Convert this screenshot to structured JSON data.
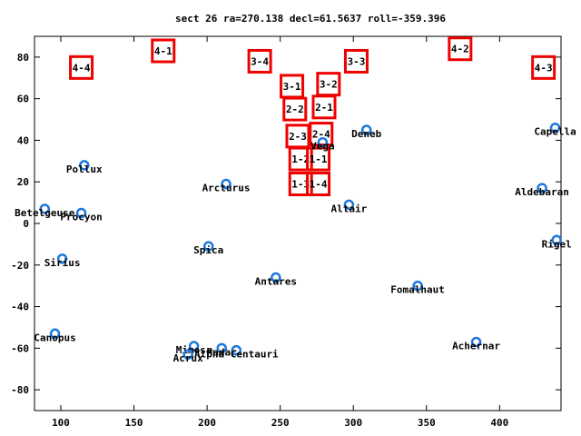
{
  "chart_data": {
    "type": "scatter",
    "title": "sect 26 ra=270.138 decl=61.5637 roll=-359.396",
    "xlabel": "",
    "ylabel": "",
    "xlim": [
      82,
      442
    ],
    "ylim": [
      -90,
      90
    ],
    "xticks": [
      100,
      150,
      200,
      250,
      300,
      350,
      400
    ],
    "yticks": [
      -80,
      -60,
      -40,
      -20,
      0,
      20,
      40,
      60,
      80
    ],
    "grid": false,
    "legend": "none",
    "colors": {
      "stars": "#1e78dc",
      "sectors": "#ee0000",
      "axis": "#000000",
      "text": "#000000"
    },
    "stars": [
      {
        "name": "Capella",
        "x": 438,
        "y": 46
      },
      {
        "name": "Deneb",
        "x": 309,
        "y": 45
      },
      {
        "name": "Vega",
        "x": 279,
        "y": 39
      },
      {
        "name": "Pollux",
        "x": 116,
        "y": 28
      },
      {
        "name": "Arcturus",
        "x": 213,
        "y": 19
      },
      {
        "name": "Aldebaran",
        "x": 429,
        "y": 17
      },
      {
        "name": "Altair",
        "x": 297,
        "y": 9
      },
      {
        "name": "Betelgeuse",
        "x": 89,
        "y": 7
      },
      {
        "name": "Procyon",
        "x": 114,
        "y": 5
      },
      {
        "name": "Rigel",
        "x": 439,
        "y": -8
      },
      {
        "name": "Spica",
        "x": 201,
        "y": -11
      },
      {
        "name": "Sirius",
        "x": 101,
        "y": -17
      },
      {
        "name": "Antares",
        "x": 247,
        "y": -26
      },
      {
        "name": "Fomalhaut",
        "x": 344,
        "y": -30
      },
      {
        "name": "Canopus",
        "x": 96,
        "y": -53
      },
      {
        "name": "Achernar",
        "x": 384,
        "y": -57
      },
      {
        "name": "Mimosa",
        "x": 191,
        "y": -59
      },
      {
        "name": "Hadar",
        "x": 210,
        "y": -60
      },
      {
        "name": "Alpha Centauri",
        "x": 220,
        "y": -61
      },
      {
        "name": "Acrux",
        "x": 187,
        "y": -63
      }
    ],
    "sectors": [
      {
        "label": "4-1",
        "x": 170,
        "y": 83
      },
      {
        "label": "4-2",
        "x": 373,
        "y": 84
      },
      {
        "label": "4-4",
        "x": 114,
        "y": 75
      },
      {
        "label": "3-4",
        "x": 236,
        "y": 78
      },
      {
        "label": "3-3",
        "x": 302,
        "y": 78
      },
      {
        "label": "4-3",
        "x": 430,
        "y": 75
      },
      {
        "label": "3-1",
        "x": 258,
        "y": 66
      },
      {
        "label": "3-2",
        "x": 283,
        "y": 67
      },
      {
        "label": "2-2",
        "x": 260,
        "y": 55
      },
      {
        "label": "2-1",
        "x": 280,
        "y": 56
      },
      {
        "label": "2-3",
        "x": 262,
        "y": 42
      },
      {
        "label": "2-4",
        "x": 278,
        "y": 43
      },
      {
        "label": "1-2",
        "x": 264,
        "y": 31
      },
      {
        "label": "1-1",
        "x": 276,
        "y": 31
      },
      {
        "label": "1-3",
        "x": 264,
        "y": 19
      },
      {
        "label": "1-4",
        "x": 276,
        "y": 19
      }
    ]
  }
}
